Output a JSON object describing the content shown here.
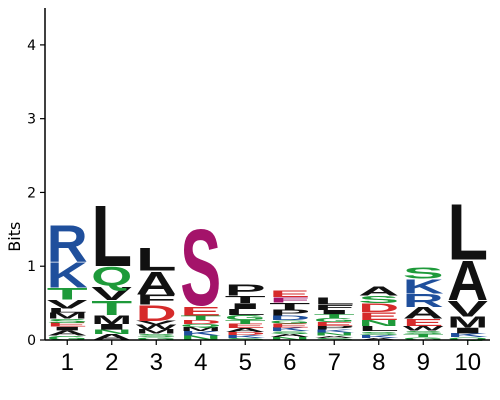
{
  "chart_data": {
    "type": "sequence-logo",
    "ylabel": "Bits",
    "ylim": [
      0,
      4.5
    ],
    "yticks": [
      "0",
      "1",
      "2",
      "3",
      "4"
    ],
    "colors": {
      "acidic": "#d62b2b",
      "basic": "#1f4f9c",
      "polar": "#1e9a3a",
      "hydrophobic": "#111111",
      "special": "#a4136a"
    },
    "positions": [
      {
        "label": "1",
        "stack": [
          {
            "letter": "G",
            "bits": 0.06,
            "color": "#1e9a3a"
          },
          {
            "letter": "A",
            "bits": 0.07,
            "color": "#111111"
          },
          {
            "letter": "I",
            "bits": 0.05,
            "color": "#111111"
          },
          {
            "letter": "E",
            "bits": 0.05,
            "color": "#d62b2b"
          },
          {
            "letter": "S",
            "bits": 0.06,
            "color": "#1e9a3a"
          },
          {
            "letter": "M",
            "bits": 0.08,
            "color": "#111111"
          },
          {
            "letter": "L",
            "bits": 0.06,
            "color": "#111111"
          },
          {
            "letter": "V",
            "bits": 0.12,
            "color": "#111111"
          },
          {
            "letter": "T",
            "bits": 0.16,
            "color": "#1e9a3a"
          },
          {
            "letter": "K",
            "bits": 0.35,
            "color": "#1f4f9c"
          },
          {
            "letter": "R",
            "bits": 0.52,
            "color": "#1f4f9c"
          }
        ]
      },
      {
        "label": "2",
        "stack": [
          {
            "letter": "A",
            "bits": 0.08,
            "color": "#111111"
          },
          {
            "letter": "N",
            "bits": 0.06,
            "color": "#1e9a3a"
          },
          {
            "letter": "I",
            "bits": 0.08,
            "color": "#111111"
          },
          {
            "letter": "M",
            "bits": 0.12,
            "color": "#111111"
          },
          {
            "letter": "T",
            "bits": 0.2,
            "color": "#1e9a3a"
          },
          {
            "letter": "V",
            "bits": 0.18,
            "color": "#111111"
          },
          {
            "letter": "Q",
            "bits": 0.28,
            "color": "#1e9a3a"
          },
          {
            "letter": "L",
            "bits": 0.85,
            "color": "#111111"
          }
        ]
      },
      {
        "label": "3",
        "stack": [
          {
            "letter": "G",
            "bits": 0.04,
            "color": "#1e9a3a"
          },
          {
            "letter": "S",
            "bits": 0.05,
            "color": "#1e9a3a"
          },
          {
            "letter": "M",
            "bits": 0.06,
            "color": "#111111"
          },
          {
            "letter": "W",
            "bits": 0.06,
            "color": "#111111"
          },
          {
            "letter": "V",
            "bits": 0.05,
            "color": "#111111"
          },
          {
            "letter": "D",
            "bits": 0.22,
            "color": "#d62b2b"
          },
          {
            "letter": "F",
            "bits": 0.14,
            "color": "#111111"
          },
          {
            "letter": "A",
            "bits": 0.32,
            "color": "#111111"
          },
          {
            "letter": "L",
            "bits": 0.32,
            "color": "#111111"
          }
        ]
      },
      {
        "label": "4",
        "stack": [
          {
            "letter": "N",
            "bits": 0.06,
            "color": "#1e9a3a"
          },
          {
            "letter": "K",
            "bits": 0.06,
            "color": "#1f4f9c"
          },
          {
            "letter": "M",
            "bits": 0.05,
            "color": "#111111"
          },
          {
            "letter": "Q",
            "bits": 0.05,
            "color": "#1e9a3a"
          },
          {
            "letter": "D",
            "bits": 0.05,
            "color": "#d62b2b"
          },
          {
            "letter": "T",
            "bits": 0.06,
            "color": "#1e9a3a"
          },
          {
            "letter": "E",
            "bits": 0.12,
            "color": "#d62b2b"
          },
          {
            "letter": "S",
            "bits": 1.1,
            "color": "#a4136a"
          }
        ]
      },
      {
        "label": "5",
        "stack": [
          {
            "letter": "S",
            "bits": 0.03,
            "color": "#1e9a3a"
          },
          {
            "letter": "K",
            "bits": 0.04,
            "color": "#1f4f9c"
          },
          {
            "letter": "D",
            "bits": 0.04,
            "color": "#d62b2b"
          },
          {
            "letter": "A",
            "bits": 0.05,
            "color": "#111111"
          },
          {
            "letter": "E",
            "bits": 0.06,
            "color": "#d62b2b"
          },
          {
            "letter": "T",
            "bits": 0.05,
            "color": "#1e9a3a"
          },
          {
            "letter": "G",
            "bits": 0.07,
            "color": "#1e9a3a"
          },
          {
            "letter": "L",
            "bits": 0.08,
            "color": "#111111"
          },
          {
            "letter": "I",
            "bits": 0.08,
            "color": "#111111"
          },
          {
            "letter": "T",
            "bits": 0.1,
            "color": "#111111"
          },
          {
            "letter": "P",
            "bits": 0.15,
            "color": "#111111"
          }
        ]
      },
      {
        "label": "6",
        "stack": [
          {
            "letter": "N",
            "bits": 0.04,
            "color": "#1e9a3a"
          },
          {
            "letter": "A",
            "bits": 0.04,
            "color": "#111111"
          },
          {
            "letter": "S",
            "bits": 0.04,
            "color": "#1e9a3a"
          },
          {
            "letter": "K",
            "bits": 0.05,
            "color": "#1f4f9c"
          },
          {
            "letter": "E",
            "bits": 0.05,
            "color": "#d62b2b"
          },
          {
            "letter": "G",
            "bits": 0.05,
            "color": "#1e9a3a"
          },
          {
            "letter": "D",
            "bits": 0.06,
            "color": "#1f4f9c"
          },
          {
            "letter": "P",
            "bits": 0.08,
            "color": "#111111"
          },
          {
            "letter": "T",
            "bits": 0.1,
            "color": "#111111"
          },
          {
            "letter": "F",
            "bits": 0.07,
            "color": "#a4136a"
          },
          {
            "letter": "E",
            "bits": 0.09,
            "color": "#d62b2b"
          }
        ]
      },
      {
        "label": "7",
        "stack": [
          {
            "letter": "S",
            "bits": 0.03,
            "color": "#1e9a3a"
          },
          {
            "letter": "A",
            "bits": 0.03,
            "color": "#111111"
          },
          {
            "letter": "N",
            "bits": 0.04,
            "color": "#1e9a3a"
          },
          {
            "letter": "K",
            "bits": 0.04,
            "color": "#1f4f9c"
          },
          {
            "letter": "P",
            "bits": 0.05,
            "color": "#111111"
          },
          {
            "letter": "E",
            "bits": 0.05,
            "color": "#d62b2b"
          },
          {
            "letter": "G",
            "bits": 0.06,
            "color": "#1e9a3a"
          },
          {
            "letter": "T",
            "bits": 0.05,
            "color": "#1e9a3a"
          },
          {
            "letter": "I",
            "bits": 0.06,
            "color": "#111111"
          },
          {
            "letter": "F",
            "bits": 0.07,
            "color": "#111111"
          },
          {
            "letter": "L",
            "bits": 0.1,
            "color": "#111111"
          }
        ]
      },
      {
        "label": "8",
        "stack": [
          {
            "letter": "A",
            "bits": 0.03,
            "color": "#111111"
          },
          {
            "letter": "K",
            "bits": 0.04,
            "color": "#1f4f9c"
          },
          {
            "letter": "S",
            "bits": 0.05,
            "color": "#1e9a3a"
          },
          {
            "letter": "L",
            "bits": 0.07,
            "color": "#111111"
          },
          {
            "letter": "N",
            "bits": 0.08,
            "color": "#1e9a3a"
          },
          {
            "letter": "E",
            "bits": 0.11,
            "color": "#d62b2b"
          },
          {
            "letter": "D",
            "bits": 0.12,
            "color": "#d62b2b"
          },
          {
            "letter": "S",
            "bits": 0.1,
            "color": "#1e9a3a"
          },
          {
            "letter": "A",
            "bits": 0.13,
            "color": "#111111"
          }
        ]
      },
      {
        "label": "9",
        "stack": [
          {
            "letter": "G",
            "bits": 0.04,
            "color": "#1e9a3a"
          },
          {
            "letter": "T",
            "bits": 0.04,
            "color": "#1e9a3a"
          },
          {
            "letter": "S",
            "bits": 0.05,
            "color": "#1e9a3a"
          },
          {
            "letter": "W",
            "bits": 0.06,
            "color": "#111111"
          },
          {
            "letter": "E",
            "bits": 0.1,
            "color": "#d62b2b"
          },
          {
            "letter": "A",
            "bits": 0.16,
            "color": "#111111"
          },
          {
            "letter": "R",
            "bits": 0.18,
            "color": "#1f4f9c"
          },
          {
            "letter": "K",
            "bits": 0.2,
            "color": "#1f4f9c"
          },
          {
            "letter": "S",
            "bits": 0.16,
            "color": "#1e9a3a"
          }
        ]
      },
      {
        "label": "10",
        "stack": [
          {
            "letter": "Q",
            "bits": 0.04,
            "color": "#1e9a3a"
          },
          {
            "letter": "K",
            "bits": 0.05,
            "color": "#1f4f9c"
          },
          {
            "letter": "I",
            "bits": 0.08,
            "color": "#111111"
          },
          {
            "letter": "M",
            "bits": 0.15,
            "color": "#111111"
          },
          {
            "letter": "V",
            "bits": 0.22,
            "color": "#111111"
          },
          {
            "letter": "A",
            "bits": 0.55,
            "color": "#111111"
          },
          {
            "letter": "L",
            "bits": 0.78,
            "color": "#111111"
          }
        ]
      }
    ]
  }
}
